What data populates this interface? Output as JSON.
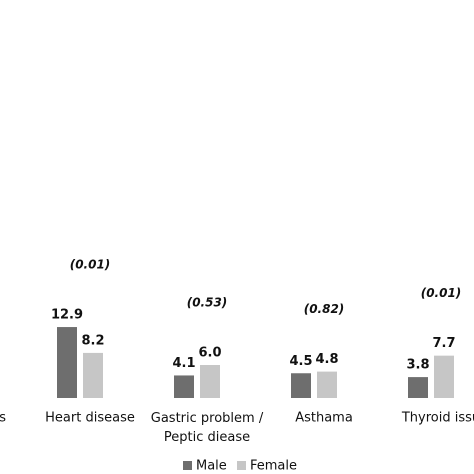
{
  "chart_data": {
    "type": "bar",
    "categories": [
      "s",
      "Heart disease",
      "Gastric problem / Peptic diease",
      "Asthama",
      "Thyroid issu"
    ],
    "annotations": [
      null,
      "(0.01)",
      "(0.53)",
      "(0.82)",
      "(0.01)"
    ],
    "series": [
      {
        "name": "Male",
        "color": "#6e6e6e",
        "values": [
          null,
          12.9,
          4.1,
          4.5,
          3.8
        ],
        "value_labels": [
          null,
          "12.9",
          "4.1",
          "4.5",
          "3.8"
        ]
      },
      {
        "name": "Female",
        "color": "#c6c6c6",
        "values": [
          null,
          8.2,
          6.0,
          4.8,
          7.7
        ],
        "value_labels": [
          null,
          "8.2",
          "6.0",
          "4.8",
          "7.7"
        ]
      }
    ],
    "legend": "bottom"
  }
}
